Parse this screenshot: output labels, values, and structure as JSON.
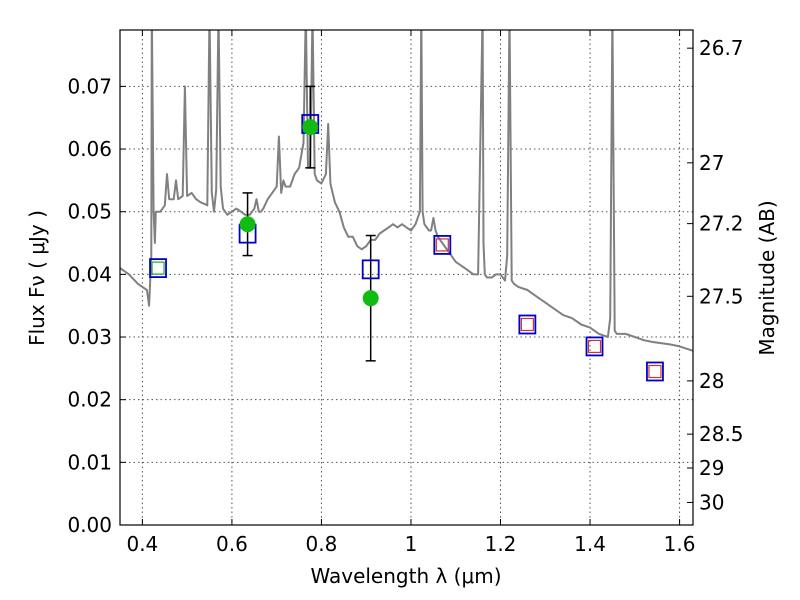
{
  "chart_data": {
    "type": "scatter",
    "xlabel": "Wavelength  λ (μm)",
    "ylabel": "Flux  Fν  ( μJy )",
    "ylabel_right": "Magnitude (AB)",
    "xlim": [
      0.35,
      1.63
    ],
    "ylim": [
      0.0,
      0.079
    ],
    "grid": true,
    "x_ticks": [
      0.4,
      0.6,
      0.8,
      1.0,
      1.2,
      1.4,
      1.6
    ],
    "x_tick_labels": [
      "0.4",
      "0.6",
      "0.8",
      "1",
      "1.2",
      "1.4",
      "1.6"
    ],
    "y_ticks": [
      0.0,
      0.01,
      0.02,
      0.03,
      0.04,
      0.05,
      0.06,
      0.07
    ],
    "y_tick_labels": [
      "0.00",
      "0.01",
      "0.02",
      "0.03",
      "0.04",
      "0.05",
      "0.06",
      "0.07"
    ],
    "right_ticks": [
      {
        "label": "26.7",
        "flux": 0.0761
      },
      {
        "label": "27",
        "flux": 0.0578
      },
      {
        "label": "27.2",
        "flux": 0.0481
      },
      {
        "label": "27.5",
        "flux": 0.0365
      },
      {
        "label": "28",
        "flux": 0.023
      },
      {
        "label": "28.5",
        "flux": 0.0145
      },
      {
        "label": "29",
        "flux": 0.0091
      },
      {
        "label": "30",
        "flux": 0.0036
      }
    ],
    "series": [
      {
        "kind": "spectrum",
        "color": "#808080",
        "x": [
          0.35,
          0.37,
          0.39,
          0.4,
          0.41,
          0.415,
          0.42,
          0.421,
          0.425,
          0.428,
          0.43,
          0.44,
          0.45,
          0.455,
          0.46,
          0.47,
          0.475,
          0.48,
          0.49,
          0.495,
          0.5,
          0.51,
          0.52,
          0.53,
          0.54,
          0.545,
          0.55,
          0.555,
          0.56,
          0.565,
          0.57,
          0.575,
          0.58,
          0.59,
          0.6,
          0.61,
          0.62,
          0.63,
          0.64,
          0.65,
          0.655,
          0.66,
          0.665,
          0.67,
          0.68,
          0.69,
          0.7,
          0.705,
          0.71,
          0.715,
          0.72,
          0.73,
          0.74,
          0.75,
          0.76,
          0.765,
          0.77,
          0.775,
          0.78,
          0.785,
          0.79,
          0.8,
          0.81,
          0.815,
          0.82,
          0.825,
          0.83,
          0.84,
          0.85,
          0.86,
          0.87,
          0.88,
          0.89,
          0.9,
          0.91,
          0.92,
          0.93,
          0.94,
          0.95,
          0.96,
          0.97,
          0.98,
          0.99,
          1.0,
          1.01,
          1.02,
          1.023,
          1.026,
          1.03,
          1.04,
          1.045,
          1.05,
          1.055,
          1.06,
          1.07,
          1.08,
          1.09,
          1.1,
          1.12,
          1.14,
          1.15,
          1.16,
          1.162,
          1.165,
          1.17,
          1.18,
          1.19,
          1.2,
          1.21,
          1.215,
          1.22,
          1.225,
          1.23,
          1.24,
          1.26,
          1.28,
          1.3,
          1.32,
          1.34,
          1.36,
          1.38,
          1.4,
          1.42,
          1.44,
          1.445,
          1.45,
          1.455,
          1.46,
          1.48,
          1.5,
          1.52,
          1.54,
          1.56,
          1.58,
          1.6,
          1.63
        ],
        "y": [
          0.041,
          0.04,
          0.0385,
          0.038,
          0.0375,
          0.035,
          0.043,
          0.082,
          0.05,
          0.045,
          0.05,
          0.05,
          0.051,
          0.056,
          0.052,
          0.052,
          0.055,
          0.052,
          0.0525,
          0.07,
          0.0525,
          0.053,
          0.052,
          0.0515,
          0.0512,
          0.051,
          0.082,
          0.053,
          0.05,
          0.0535,
          0.082,
          0.054,
          0.0505,
          0.0495,
          0.05,
          0.0505,
          0.05,
          0.0495,
          0.0495,
          0.0505,
          0.052,
          0.05,
          0.05,
          0.0505,
          0.052,
          0.053,
          0.054,
          0.062,
          0.053,
          0.055,
          0.054,
          0.054,
          0.056,
          0.057,
          0.061,
          0.082,
          0.057,
          0.057,
          0.082,
          0.056,
          0.055,
          0.0545,
          0.056,
          0.064,
          0.0545,
          0.053,
          0.0515,
          0.05,
          0.0475,
          0.046,
          0.046,
          0.0445,
          0.044,
          0.0445,
          0.0455,
          0.0455,
          0.0465,
          0.047,
          0.0475,
          0.048,
          0.0475,
          0.048,
          0.0475,
          0.047,
          0.048,
          0.05,
          0.082,
          0.05,
          0.048,
          0.047,
          0.047,
          0.049,
          0.047,
          0.046,
          0.045,
          0.044,
          0.043,
          0.042,
          0.041,
          0.04,
          0.04,
          0.082,
          0.045,
          0.04,
          0.0395,
          0.0395,
          0.04,
          0.04,
          0.039,
          0.043,
          0.082,
          0.039,
          0.0385,
          0.038,
          0.0375,
          0.0365,
          0.0355,
          0.0345,
          0.0335,
          0.033,
          0.032,
          0.0315,
          0.0305,
          0.03,
          0.033,
          0.082,
          0.031,
          0.0305,
          0.0305,
          0.03,
          0.0295,
          0.0292,
          0.029,
          0.0288,
          0.0285,
          0.0278
        ],
        "line_width": 2.0
      },
      {
        "kind": "model-photometry",
        "edge_color": "#0000cc",
        "x": [
          0.435,
          0.635,
          0.775,
          0.91,
          1.07,
          1.26,
          1.41,
          1.545
        ],
        "y": [
          0.041,
          0.0465,
          0.064,
          0.0408,
          0.0447,
          0.032,
          0.0285,
          0.0245
        ]
      },
      {
        "kind": "inner-markers",
        "x": [
          0.435,
          1.07,
          1.26,
          1.41,
          1.545
        ],
        "y": [
          0.041,
          0.0447,
          0.032,
          0.0285,
          0.0245
        ],
        "edge_colors": [
          "#22aa22",
          "#cc3333",
          "#cc3333",
          "#cc3333",
          "#cc3333"
        ]
      },
      {
        "kind": "observed",
        "color": "#11bb11",
        "x": [
          0.635,
          0.775,
          0.91
        ],
        "y": [
          0.048,
          0.0635,
          0.0362
        ],
        "yerr": [
          0.005,
          0.0065,
          0.01
        ]
      }
    ]
  }
}
